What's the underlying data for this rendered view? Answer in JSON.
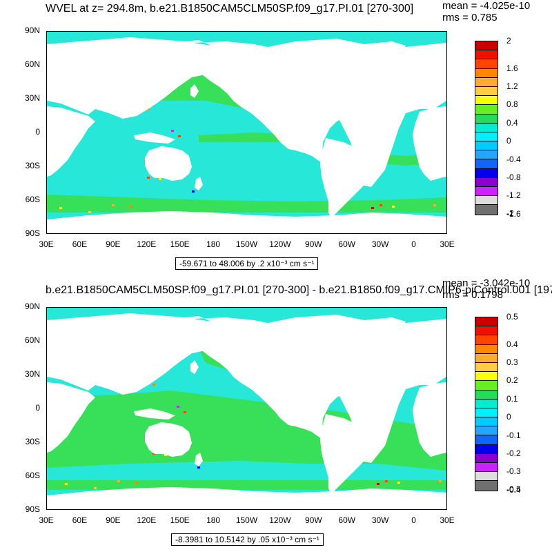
{
  "panels": [
    {
      "title": "WVEL at z= 294.8m, b.e21.B1850CAM5CLM50SP.f09_g17.PI.01 [270-300]",
      "mean": "mean = -4.025e-10",
      "rms": "rms = 0.785",
      "units_text": "-59.671 to 48.006 by .2 x10⁻³ cm s⁻¹",
      "colorbar_labels": [
        "2",
        "1.6",
        "1.2",
        "0.8",
        "0.4",
        "0",
        "-0.4",
        "-0.8",
        "-1.2",
        "-1.6",
        "-2"
      ]
    },
    {
      "title": "b.e21.B1850CAM5CLM50SP.f09_g17.PI.01 [270-300] - b.e21.B1850.f09_g17.CMIP6-piControl.001 [197",
      "mean": "mean = -3.042e-10",
      "rms": "rms = 0.1798",
      "units_text": "-8.3981 to 10.5142 by .05 x10⁻³ cm s⁻¹",
      "colorbar_labels": [
        "0.5",
        "0.4",
        "0.3",
        "0.2",
        "0.1",
        "0",
        "-0.1",
        "-0.2",
        "-0.3",
        "-0.4",
        "-0.5"
      ]
    }
  ],
  "lat_labels": [
    "90N",
    "60N",
    "30N",
    "0",
    "30S",
    "60S",
    "90S"
  ],
  "lon_labels": [
    "30E",
    "60E",
    "90E",
    "120E",
    "150E",
    "180",
    "150W",
    "120W",
    "90W",
    "60W",
    "30W",
    "0",
    "30E"
  ],
  "colors": {
    "land": "#ffffff",
    "ocean_base": "#27e8d8",
    "ocean_green": "#38e05a",
    "colorbar": [
      "#c80000",
      "#ee1100",
      "#ff4400",
      "#ff8800",
      "#ffaa30",
      "#ffcc44",
      "#ffff00",
      "#66ee22",
      "#22dd55",
      "#00eecc",
      "#00f0ff",
      "#00ccff",
      "#22a6ff",
      "#1166ff",
      "#0000ee",
      "#8800cc",
      "#cc22ff",
      "#dddddd",
      "#707070"
    ]
  }
}
